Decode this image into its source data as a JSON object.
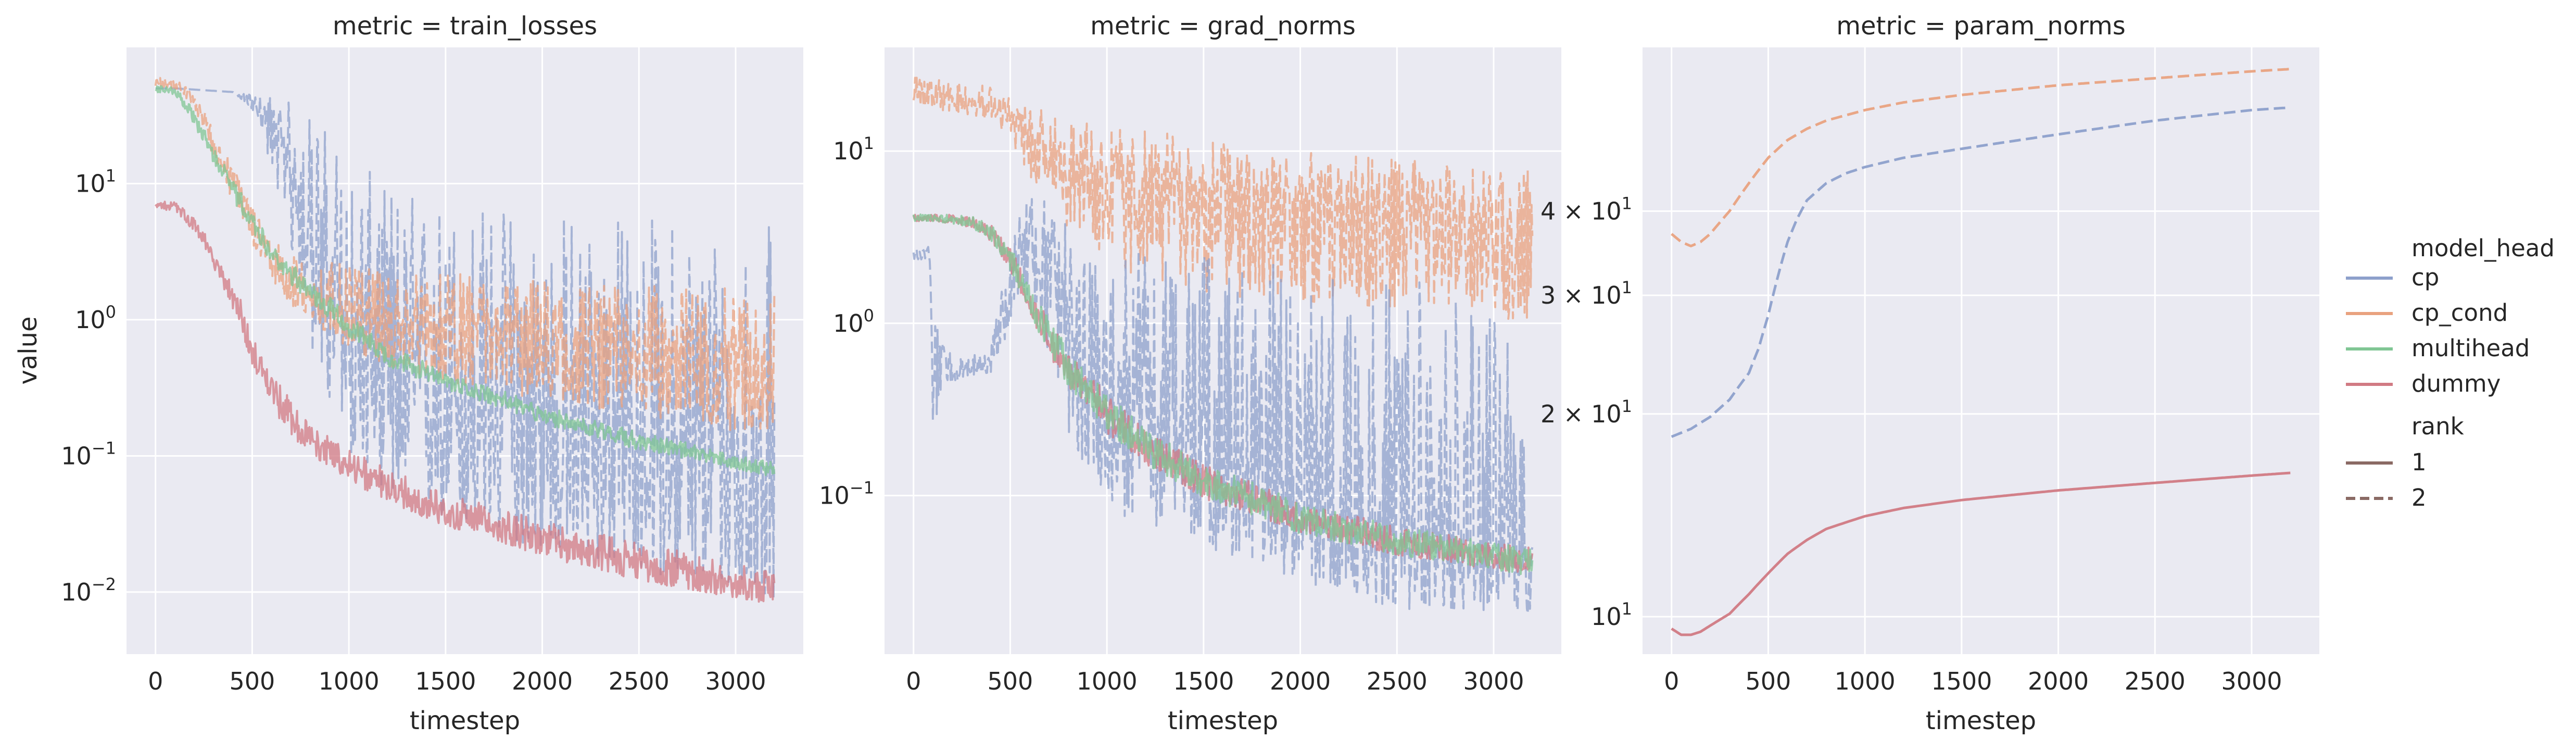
{
  "figure": {
    "ylabel": "value",
    "xlabel": "timestep",
    "legend": {
      "hue_title": "model_head",
      "style_title": "rank",
      "hue_entries": [
        {
          "label": "cp",
          "color": "#8da0cb"
        },
        {
          "label": "cp_cond",
          "color": "#e9a27f"
        },
        {
          "label": "multihead",
          "color": "#80c694"
        },
        {
          "label": "dummy",
          "color": "#d17a83"
        }
      ],
      "style_entries": [
        {
          "label": "1",
          "dash": "solid",
          "color": "#8a6a64"
        },
        {
          "label": "2",
          "dash": "dashed",
          "color": "#8a6a64"
        }
      ]
    },
    "theme": {
      "panel_bg": "#eaeaf2",
      "grid": "#ffffff",
      "text": "#262626"
    }
  },
  "chart_data": [
    {
      "type": "line",
      "title": "metric = train_losses",
      "xlabel": "timestep",
      "ylabel": "value",
      "xscale": "linear",
      "yscale": "log",
      "xlim": [
        -150,
        3350
      ],
      "ylim": [
        0.0035,
        100
      ],
      "xticks": [
        0,
        500,
        1000,
        1500,
        2000,
        2500,
        3000
      ],
      "xtick_labels": [
        "0",
        "500",
        "1000",
        "1500",
        "2000",
        "2500",
        "3000"
      ],
      "yticks": [
        10,
        1,
        0.1,
        0.01
      ],
      "ytick_labels": [
        {
          "base": "10",
          "exp": "1"
        },
        {
          "base": "10",
          "exp": "0"
        },
        {
          "base": "10",
          "exp": "−1"
        },
        {
          "base": "10",
          "exp": "−2"
        }
      ],
      "grid": true,
      "series": [
        {
          "model_head": "cp",
          "rank": "2",
          "noisy": true,
          "x": [
            0,
            100,
            200,
            300,
            400,
            500,
            600,
            700,
            800,
            900,
            1000,
            1200,
            1500,
            2000,
            2500,
            3000,
            3200
          ],
          "y_center": [
            50,
            50,
            49,
            48,
            47,
            40,
            25,
            12,
            5,
            1.8,
            0.8,
            0.45,
            0.28,
            0.18,
            0.12,
            0.09,
            0.08
          ],
          "y_low": [
            50,
            50,
            49,
            48,
            47,
            35,
            12,
            3,
            0.6,
            0.2,
            0.1,
            0.05,
            0.03,
            0.02,
            0.014,
            0.01,
            0.009
          ],
          "y_high": [
            50,
            50,
            49,
            48,
            47,
            45,
            45,
            40,
            35,
            25,
            15,
            10,
            8,
            7,
            6,
            6,
            5
          ]
        },
        {
          "model_head": "cp_cond",
          "rank": "2",
          "noisy": true,
          "x": [
            0,
            100,
            200,
            300,
            400,
            500,
            600,
            700,
            800,
            1000,
            1200,
            1500,
            2000,
            2500,
            3000,
            3200
          ],
          "y_center": [
            55,
            55,
            40,
            20,
            10,
            5,
            3,
            1.9,
            1.5,
            1.2,
            1.0,
            0.9,
            0.75,
            0.65,
            0.55,
            0.5
          ],
          "y_low": [
            50,
            50,
            35,
            15,
            7,
            3.5,
            2,
            1.2,
            0.9,
            0.6,
            0.45,
            0.35,
            0.25,
            0.2,
            0.15,
            0.15
          ],
          "y_high": [
            60,
            60,
            45,
            25,
            13,
            7,
            4,
            3,
            2.8,
            2.5,
            2.3,
            2.2,
            2.0,
            1.8,
            1.7,
            1.6
          ]
        },
        {
          "model_head": "multihead",
          "rank": "1",
          "noisy": true,
          "x": [
            0,
            100,
            200,
            300,
            400,
            500,
            600,
            700,
            800,
            1000,
            1200,
            1500,
            2000,
            2500,
            3000,
            3200
          ],
          "y_center": [
            50,
            48,
            30,
            16,
            9,
            5,
            3,
            2.2,
            1.6,
            0.9,
            0.55,
            0.35,
            0.2,
            0.13,
            0.09,
            0.08
          ],
          "y_low": [
            47,
            45,
            26,
            14,
            7.5,
            4.2,
            2.6,
            1.8,
            1.3,
            0.75,
            0.45,
            0.3,
            0.17,
            0.11,
            0.08,
            0.07
          ],
          "y_high": [
            53,
            51,
            34,
            18,
            10.5,
            6,
            3.5,
            2.6,
            1.9,
            1.05,
            0.65,
            0.4,
            0.23,
            0.15,
            0.1,
            0.09
          ]
        },
        {
          "model_head": "dummy",
          "rank": "1",
          "noisy": true,
          "x": [
            0,
            100,
            200,
            300,
            400,
            500,
            600,
            700,
            800,
            1000,
            1200,
            1500,
            2000,
            2500,
            3000,
            3200
          ],
          "y_center": [
            7,
            6.8,
            5,
            2.8,
            1.4,
            0.6,
            0.3,
            0.19,
            0.13,
            0.085,
            0.06,
            0.04,
            0.025,
            0.017,
            0.012,
            0.011
          ],
          "y_low": [
            6.5,
            6.3,
            4.4,
            2.4,
            1.1,
            0.45,
            0.22,
            0.14,
            0.1,
            0.065,
            0.045,
            0.03,
            0.018,
            0.012,
            0.009,
            0.008
          ],
          "y_high": [
            7.5,
            7.3,
            5.7,
            3.2,
            1.8,
            0.8,
            0.4,
            0.25,
            0.17,
            0.11,
            0.08,
            0.052,
            0.033,
            0.023,
            0.016,
            0.014
          ]
        }
      ]
    },
    {
      "type": "line",
      "title": "metric = grad_norms",
      "xlabel": "timestep",
      "ylabel": "",
      "xscale": "linear",
      "yscale": "log",
      "xlim": [
        -150,
        3350
      ],
      "ylim": [
        0.012,
        40
      ],
      "xticks": [
        0,
        500,
        1000,
        1500,
        2000,
        2500,
        3000
      ],
      "xtick_labels": [
        "0",
        "500",
        "1000",
        "1500",
        "2000",
        "2500",
        "3000"
      ],
      "yticks": [
        10,
        1,
        0.1
      ],
      "ytick_labels": [
        {
          "base": "10",
          "exp": "1"
        },
        {
          "base": "10",
          "exp": "0"
        },
        {
          "base": "10",
          "exp": "−1"
        }
      ],
      "grid": true,
      "series": [
        {
          "model_head": "cp_cond",
          "rank": "2",
          "noisy": true,
          "x": [
            0,
            200,
            400,
            500,
            600,
            800,
            1000,
            1500,
            2000,
            2500,
            3000,
            3200
          ],
          "y_center": [
            22,
            21,
            19,
            16,
            12,
            9,
            7,
            6,
            5,
            4.5,
            4,
            4
          ],
          "y_low": [
            18,
            17,
            15,
            11,
            7,
            3.5,
            2,
            1.5,
            1.3,
            1.2,
            1.1,
            1.0
          ],
          "y_high": [
            28,
            27,
            25,
            22,
            18,
            16,
            14,
            12,
            10,
            9,
            8,
            8
          ]
        },
        {
          "model_head": "cp",
          "rank": "2",
          "noisy": true,
          "x": [
            0,
            80,
            100,
            150,
            200,
            300,
            400,
            500,
            600,
            700,
            800,
            1000,
            1500,
            2000,
            2500,
            3000,
            3200
          ],
          "y_center": [
            2.5,
            2.6,
            0.9,
            0.7,
            0.5,
            0.55,
            0.6,
            1.5,
            4,
            2.5,
            1.2,
            0.6,
            0.2,
            0.09,
            0.06,
            0.05,
            0.045
          ],
          "y_low": [
            2.3,
            2.4,
            0.2,
            0.4,
            0.45,
            0.5,
            0.5,
            0.9,
            1.5,
            0.6,
            0.2,
            0.08,
            0.05,
            0.03,
            0.022,
            0.02,
            0.02
          ],
          "y_high": [
            2.7,
            2.8,
            1.0,
            0.9,
            0.6,
            0.65,
            0.7,
            2.2,
            7,
            5,
            4,
            3,
            2.5,
            2.2,
            2,
            1.8,
            1.5
          ]
        },
        {
          "model_head": "dummy",
          "rank": "1",
          "noisy": true,
          "x": [
            0,
            100,
            200,
            300,
            400,
            500,
            600,
            700,
            800,
            1000,
            1200,
            1500,
            2000,
            2500,
            3000,
            3200
          ],
          "y_center": [
            4.1,
            4.1,
            4.05,
            3.9,
            3.4,
            2.4,
            1.4,
            0.85,
            0.55,
            0.3,
            0.19,
            0.12,
            0.075,
            0.055,
            0.045,
            0.042
          ],
          "y_low": [
            3.9,
            3.9,
            3.8,
            3.6,
            3.0,
            2.0,
            1.1,
            0.65,
            0.42,
            0.23,
            0.15,
            0.095,
            0.06,
            0.045,
            0.037,
            0.034
          ],
          "y_high": [
            4.3,
            4.3,
            4.3,
            4.2,
            3.8,
            2.8,
            1.7,
            1.05,
            0.7,
            0.38,
            0.24,
            0.15,
            0.09,
            0.066,
            0.054,
            0.05
          ]
        },
        {
          "model_head": "multihead",
          "rank": "1",
          "noisy": true,
          "x": [
            0,
            100,
            200,
            300,
            400,
            500,
            600,
            700,
            800,
            1000,
            1200,
            1500,
            2000,
            2500,
            3000,
            3200
          ],
          "y_center": [
            4.1,
            4.1,
            4.05,
            3.9,
            3.4,
            2.4,
            1.4,
            0.85,
            0.55,
            0.3,
            0.19,
            0.12,
            0.075,
            0.055,
            0.045,
            0.042
          ],
          "y_low": [
            3.9,
            3.9,
            3.8,
            3.6,
            3.0,
            2.0,
            1.1,
            0.65,
            0.42,
            0.23,
            0.15,
            0.095,
            0.06,
            0.045,
            0.037,
            0.034
          ],
          "y_high": [
            4.3,
            4.3,
            4.3,
            4.2,
            3.8,
            2.8,
            1.7,
            1.05,
            0.7,
            0.38,
            0.24,
            0.15,
            0.09,
            0.066,
            0.054,
            0.05
          ]
        }
      ]
    },
    {
      "type": "line",
      "title": "metric = param_norms",
      "xlabel": "timestep",
      "ylabel": "",
      "xscale": "linear",
      "yscale": "log",
      "xlim": [
        -150,
        3350
      ],
      "ylim": [
        8.8,
        70
      ],
      "xticks": [
        0,
        500,
        1000,
        1500,
        2000,
        2500,
        3000
      ],
      "xtick_labels": [
        "0",
        "500",
        "1000",
        "1500",
        "2000",
        "2500",
        "3000"
      ],
      "yticks": [
        40,
        30,
        20,
        10
      ],
      "ytick_labels": [
        {
          "base": "4 × 10",
          "exp": "1"
        },
        {
          "base": "3 × 10",
          "exp": "1"
        },
        {
          "base": "2 × 10",
          "exp": "1"
        },
        {
          "base": "10",
          "exp": "1"
        }
      ],
      "grid": true,
      "series": [
        {
          "model_head": "cp_cond",
          "rank": "2",
          "noisy": false,
          "x": [
            0,
            50,
            100,
            150,
            200,
            300,
            400,
            500,
            600,
            700,
            800,
            1000,
            1200,
            1500,
            2000,
            2500,
            3000,
            3200
          ],
          "y": [
            37,
            36,
            35.5,
            36,
            37,
            40,
            44,
            48,
            51,
            53,
            54.5,
            56.5,
            58,
            59.5,
            61.5,
            63,
            64.5,
            65
          ]
        },
        {
          "model_head": "cp",
          "rank": "2",
          "noisy": false,
          "x": [
            0,
            100,
            200,
            300,
            400,
            450,
            500,
            550,
            600,
            650,
            700,
            800,
            900,
            1000,
            1200,
            1500,
            2000,
            2500,
            3000,
            3200
          ],
          "y": [
            18.5,
            19,
            19.8,
            21,
            23,
            25,
            28,
            32,
            36,
            39,
            41.5,
            44,
            45.5,
            46.5,
            48,
            49.5,
            52,
            54.5,
            56.5,
            57
          ]
        },
        {
          "model_head": "dummy",
          "rank": "1",
          "noisy": false,
          "x": [
            0,
            50,
            100,
            150,
            200,
            300,
            400,
            500,
            600,
            700,
            800,
            1000,
            1200,
            1500,
            2000,
            2500,
            3000,
            3200
          ],
          "y": [
            9.6,
            9.4,
            9.4,
            9.5,
            9.7,
            10.1,
            10.8,
            11.6,
            12.4,
            13.0,
            13.5,
            14.1,
            14.5,
            14.9,
            15.4,
            15.8,
            16.2,
            16.35
          ]
        }
      ]
    }
  ]
}
